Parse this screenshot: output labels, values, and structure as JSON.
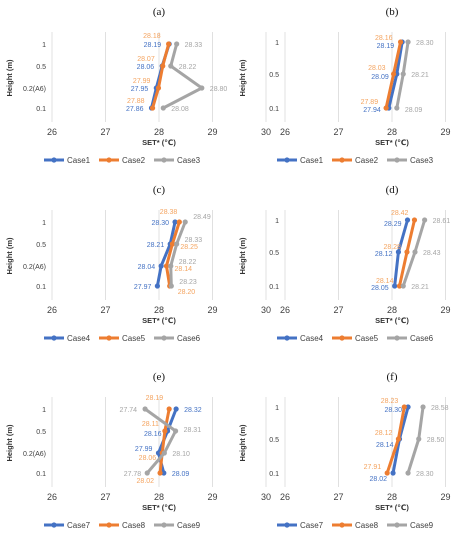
{
  "colors": {
    "series1": "#4472C4",
    "series2": "#ED7D31",
    "series3": "#A5A5A5",
    "label2_alt": "#F4A460",
    "gridline": "#D9D9D9"
  },
  "chart_data": [
    {
      "type": "line",
      "panel": "(a)",
      "xlabel": "SET* (℃)",
      "ylabel": "Height (m)",
      "xlim": [
        26,
        30
      ],
      "x_ticks": [
        "26",
        "27",
        "28",
        "29",
        "30"
      ],
      "categories": [
        "0.1",
        "0.2(A6)",
        "0.5",
        "1"
      ],
      "series": [
        {
          "name": "Case1",
          "values": [
            27.86,
            27.95,
            28.06,
            28.19
          ]
        },
        {
          "name": "Case2",
          "values": [
            27.88,
            27.99,
            28.07,
            28.18
          ]
        },
        {
          "name": "Case3",
          "values": [
            28.08,
            28.8,
            28.22,
            28.33
          ]
        }
      ]
    },
    {
      "type": "line",
      "panel": "(b)",
      "xlabel": "SET* (℃)",
      "ylabel": "Height (m)",
      "xlim": [
        26,
        30
      ],
      "x_ticks": [
        "26",
        "27",
        "28",
        "29",
        "30"
      ],
      "categories": [
        "0.1",
        "0.5",
        "1"
      ],
      "series": [
        {
          "name": "Case1",
          "values": [
            27.94,
            28.09,
            28.19
          ]
        },
        {
          "name": "Case2",
          "values": [
            27.89,
            28.03,
            28.16
          ]
        },
        {
          "name": "Case3",
          "values": [
            28.09,
            28.21,
            28.3
          ]
        }
      ]
    },
    {
      "type": "line",
      "panel": "(c)",
      "xlabel": "SET* (℃)",
      "ylabel": "Height (m)",
      "xlim": [
        26,
        30
      ],
      "x_ticks": [
        "26",
        "27",
        "28",
        "29",
        "30"
      ],
      "categories": [
        "0.1",
        "0.2(A6)",
        "0.5",
        "1"
      ],
      "series": [
        {
          "name": "Case4",
          "values": [
            27.97,
            28.04,
            28.21,
            28.3
          ]
        },
        {
          "name": "Case5",
          "values": [
            28.2,
            28.14,
            28.25,
            28.38
          ]
        },
        {
          "name": "Case6",
          "values": [
            28.23,
            28.22,
            28.33,
            28.49
          ]
        }
      ]
    },
    {
      "type": "line",
      "panel": "(d)",
      "xlabel": "SET* (℃)",
      "ylabel": "Height (m)",
      "xlim": [
        26,
        30
      ],
      "x_ticks": [
        "26",
        "27",
        "28",
        "29",
        "30"
      ],
      "categories": [
        "0.1",
        "0.5",
        "1"
      ],
      "series": [
        {
          "name": "Case4",
          "values": [
            28.05,
            28.12,
            28.29
          ]
        },
        {
          "name": "Case5",
          "values": [
            28.14,
            28.28,
            28.42
          ]
        },
        {
          "name": "Case6",
          "values": [
            28.21,
            28.43,
            28.61
          ]
        }
      ]
    },
    {
      "type": "line",
      "panel": "(e)",
      "xlabel": "SET* (℃)",
      "ylabel": "Height (m)",
      "xlim": [
        26,
        30
      ],
      "x_ticks": [
        "26",
        "27",
        "28",
        "29",
        "30"
      ],
      "categories": [
        "0.1",
        "0.2(A6)",
        "0.5",
        "1"
      ],
      "series": [
        {
          "name": "Case7",
          "values": [
            28.09,
            27.99,
            28.16,
            28.32
          ]
        },
        {
          "name": "Case8",
          "values": [
            28.02,
            28.06,
            28.11,
            28.19
          ]
        },
        {
          "name": "Case9",
          "values": [
            27.78,
            28.1,
            28.31,
            27.74
          ]
        }
      ]
    },
    {
      "type": "line",
      "panel": "(f)",
      "xlabel": "SET* (℃)",
      "ylabel": "Height (m)",
      "xlim": [
        26,
        30
      ],
      "x_ticks": [
        "26",
        "27",
        "28",
        "29",
        "30"
      ],
      "categories": [
        "0.1",
        "0.5",
        "1"
      ],
      "series": [
        {
          "name": "Case7",
          "values": [
            28.02,
            28.14,
            28.3
          ]
        },
        {
          "name": "Case8",
          "values": [
            27.91,
            28.12,
            28.23
          ]
        },
        {
          "name": "Case9",
          "values": [
            28.3,
            28.5,
            28.58
          ]
        }
      ]
    }
  ]
}
